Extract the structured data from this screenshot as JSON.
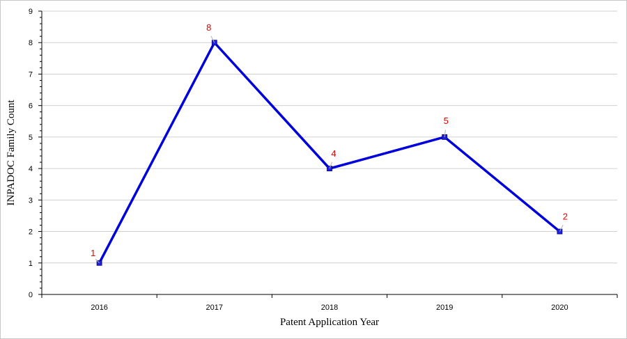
{
  "chart_data": {
    "type": "line",
    "title": "",
    "xlabel": "Patent Application Year",
    "ylabel": "INPADOC Family Count",
    "categories": [
      "2016",
      "2017",
      "2018",
      "2019",
      "2020"
    ],
    "series": [
      {
        "values": [
          1,
          8,
          4,
          5,
          2
        ]
      }
    ],
    "ylim": [
      0,
      9
    ],
    "yticks": [
      0,
      1,
      2,
      3,
      4,
      5,
      6,
      7,
      8,
      9
    ],
    "grid": true,
    "legend": "none",
    "data_labels": true,
    "colors": {
      "line": "#0000dd",
      "marker": "#2020e0",
      "label": "#e00000",
      "grid": "#d0d0d0"
    }
  }
}
